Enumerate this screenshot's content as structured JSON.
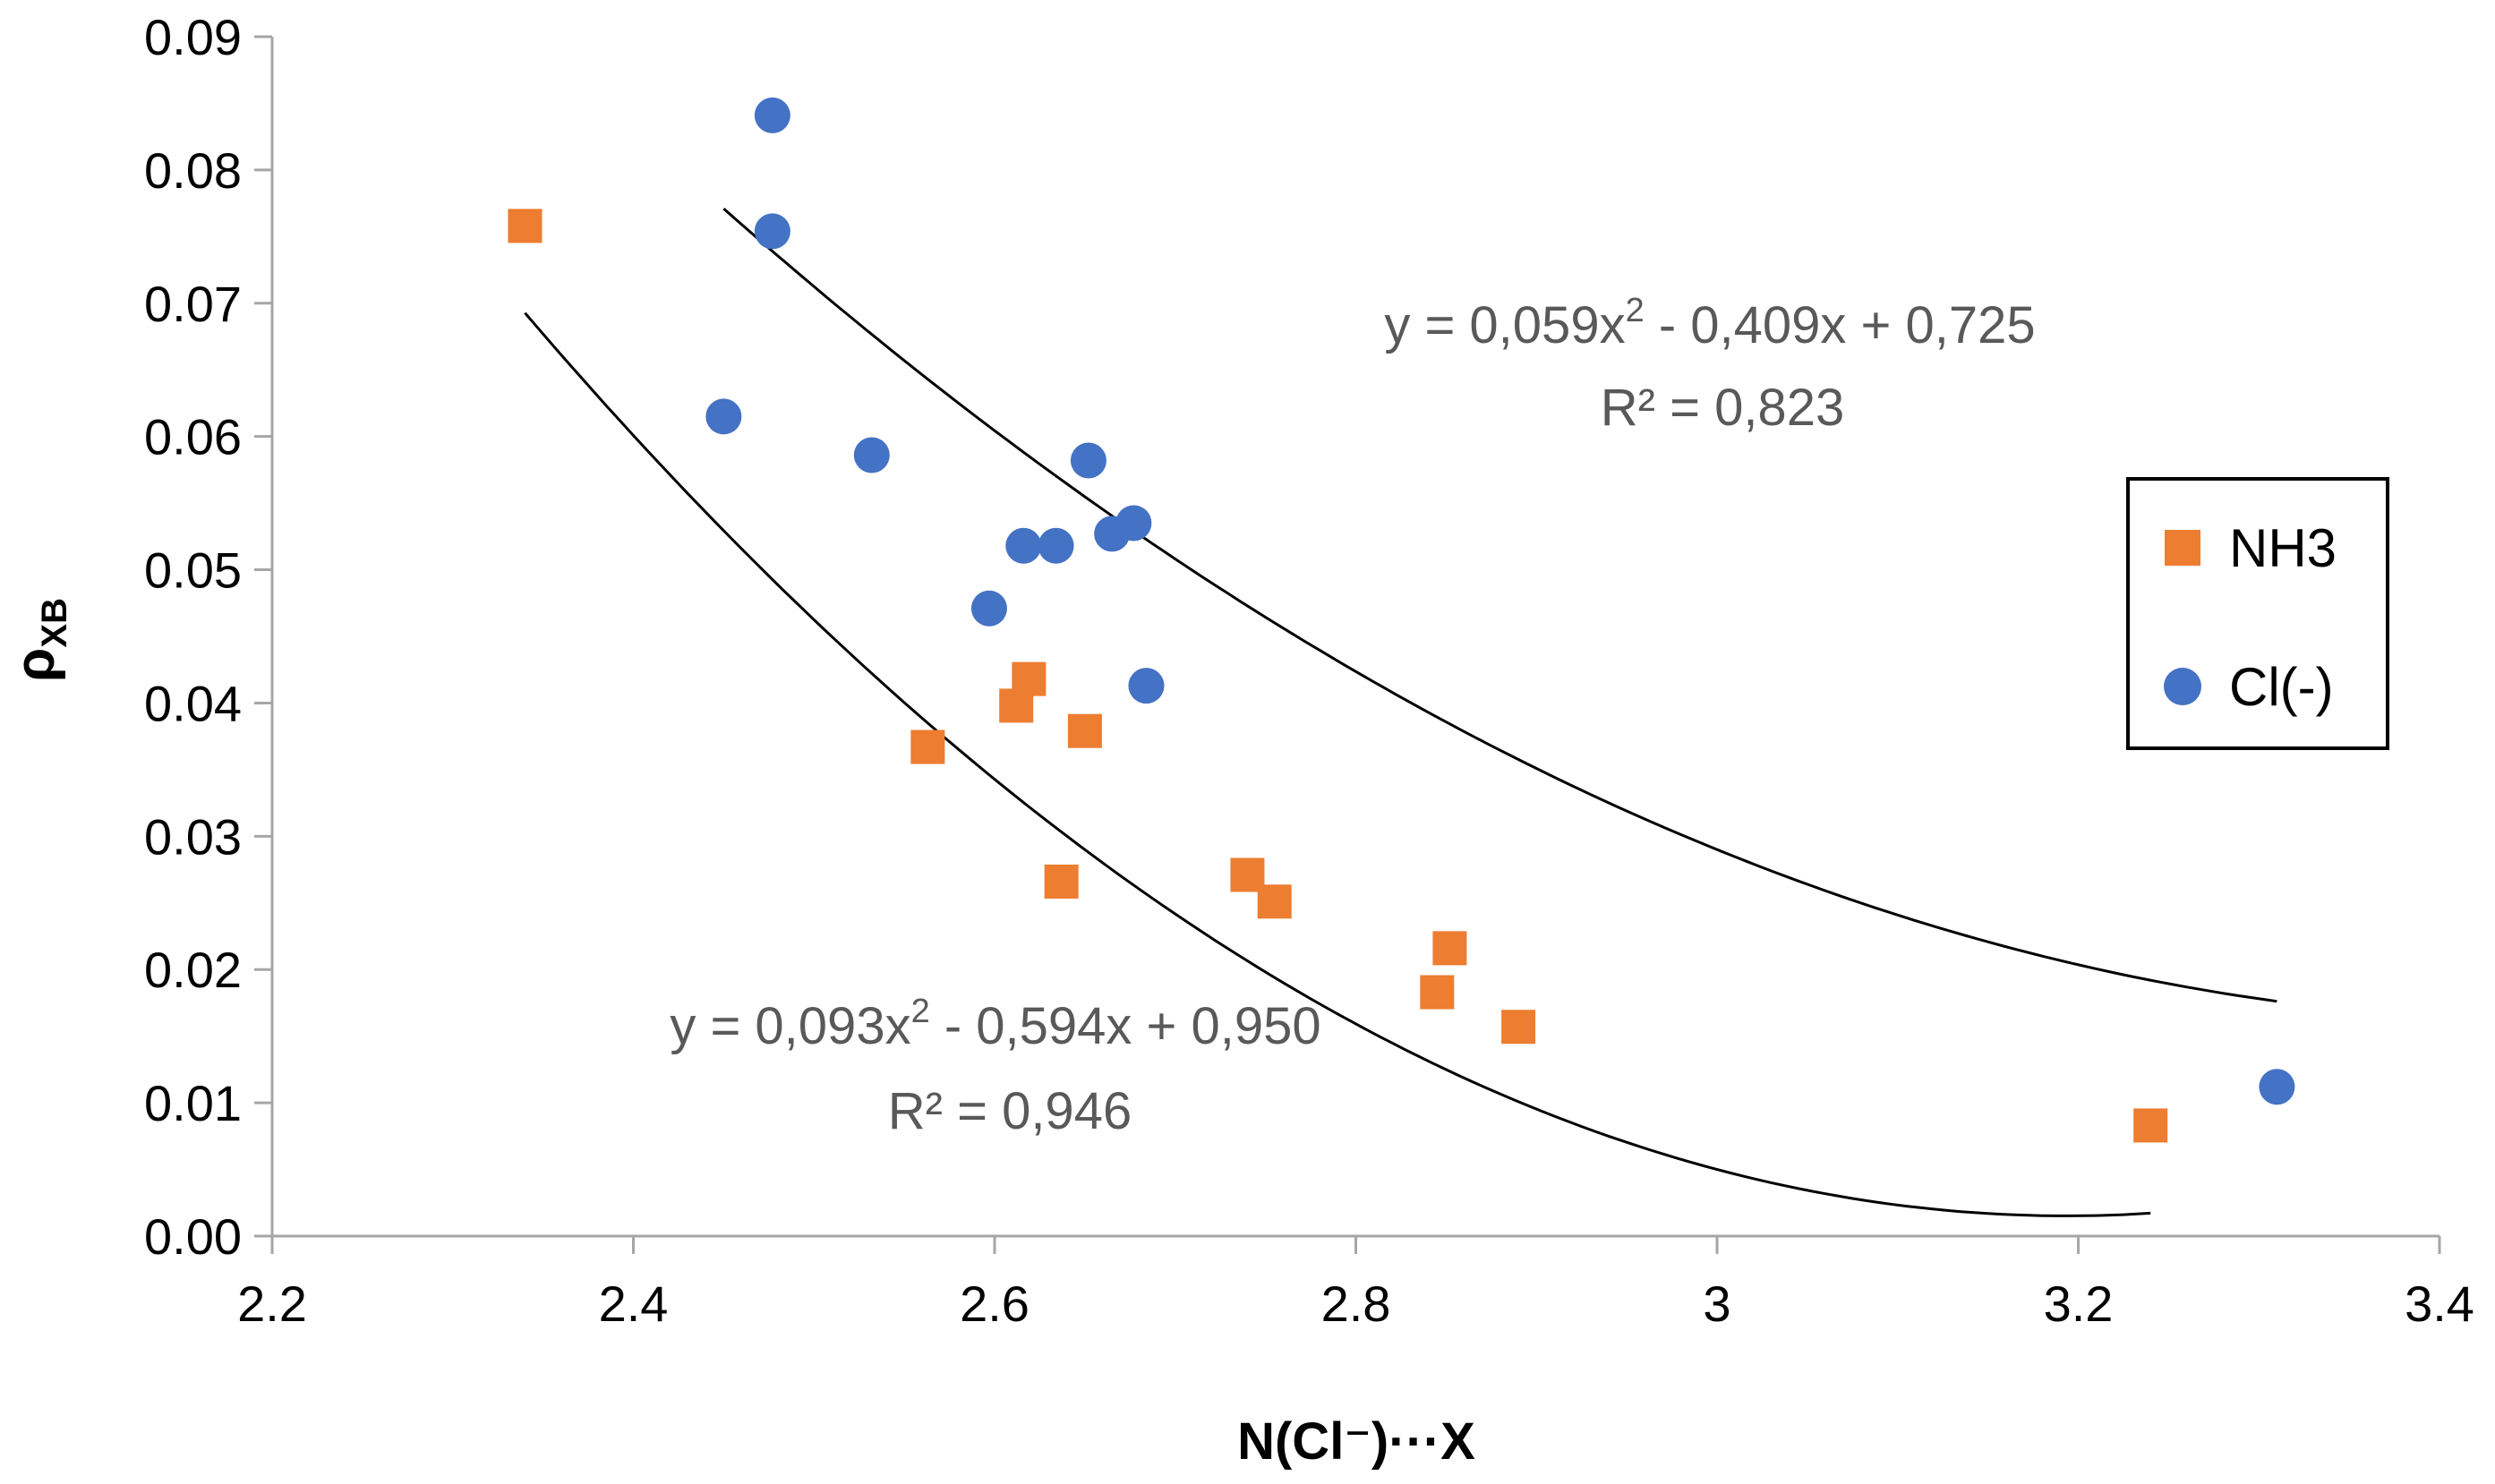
{
  "chart_data": {
    "type": "scatter",
    "title": "",
    "xlabel": "N(Cl⁻)···X",
    "ylabel_main": "ρ",
    "ylabel_sub": "XB",
    "xlim": [
      2.2,
      3.4
    ],
    "ylim": [
      0.0,
      0.09
    ],
    "x_ticks": [
      2.2,
      2.4,
      2.6,
      2.8,
      3.0,
      3.2,
      3.4
    ],
    "x_tick_labels": [
      "2.2",
      "2.4",
      "2.6",
      "2.8",
      "3",
      "3.2",
      "3.4"
    ],
    "y_ticks": [
      0.0,
      0.01,
      0.02,
      0.03,
      0.04,
      0.05,
      0.06,
      0.07,
      0.08,
      0.09
    ],
    "y_tick_labels": [
      "0.00",
      "0.01",
      "0.02",
      "0.03",
      "0.04",
      "0.05",
      "0.06",
      "0.07",
      "0.08",
      "0.09"
    ],
    "grid": false,
    "legend_position": "right",
    "series": [
      {
        "name": "NH3",
        "marker": "square",
        "color": "#ED7D31",
        "points": [
          [
            2.34,
            0.0758
          ],
          [
            2.563,
            0.0367
          ],
          [
            2.612,
            0.0398
          ],
          [
            2.619,
            0.0418
          ],
          [
            2.65,
            0.0379
          ],
          [
            2.637,
            0.0266
          ],
          [
            2.74,
            0.0271
          ],
          [
            2.755,
            0.0251
          ],
          [
            2.845,
            0.0183
          ],
          [
            2.852,
            0.0216
          ],
          [
            2.89,
            0.0157
          ],
          [
            3.24,
            0.0083
          ]
        ],
        "trendline": {
          "type": "polynomial-2",
          "coefficients": [
            0.093,
            -0.594,
            0.95
          ],
          "x_range": [
            2.34,
            3.24
          ],
          "equation_text": "y = 0,093x",
          "equation_rest": " - 0,594x  + 0,950",
          "exponent": "2",
          "r2_text": "R² = 0,946"
        }
      },
      {
        "name": "Cl(-)",
        "marker": "circle",
        "color": "#4472C4",
        "points": [
          [
            2.477,
            0.0841
          ],
          [
            2.477,
            0.0754
          ],
          [
            2.45,
            0.0615
          ],
          [
            2.532,
            0.0586
          ],
          [
            2.597,
            0.0471
          ],
          [
            2.616,
            0.0518
          ],
          [
            2.634,
            0.0518
          ],
          [
            2.652,
            0.0582
          ],
          [
            2.665,
            0.0527
          ],
          [
            2.677,
            0.0535
          ],
          [
            2.684,
            0.0413
          ],
          [
            3.31,
            0.0112
          ]
        ],
        "trendline": {
          "type": "polynomial-2",
          "coefficients": [
            0.059,
            -0.409,
            0.725
          ],
          "x_range": [
            2.45,
            3.31
          ],
          "equation_text": "y = 0,059x",
          "equation_rest": " - 0,409x  + 0,725",
          "exponent": "2",
          "r2_text": "R² = 0,823"
        }
      }
    ]
  }
}
